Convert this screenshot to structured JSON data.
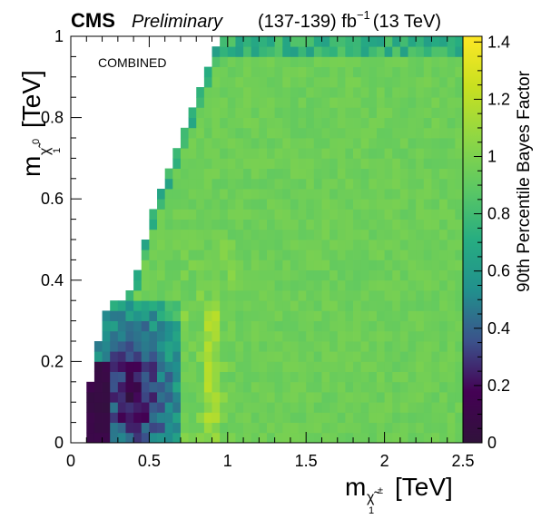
{
  "header": {
    "experiment": "CMS",
    "status": "Preliminary",
    "luminosity": "(137-139) fb",
    "lumi_exponent": "−1",
    "energy": "(13 TeV)"
  },
  "annotation": "COMBINED",
  "chart_data": {
    "type": "heatmap",
    "xlabel": {
      "main": "m",
      "sub": "χ̃",
      "sub_sup": "±",
      "sub_sub": "1",
      "unit": "[TeV]"
    },
    "ylabel": {
      "main": "m",
      "sub": "χ̃",
      "sub_sup": "0",
      "sub_sub": "1",
      "unit": "[TeV]"
    },
    "zlabel": "90th Percentile Bayes Factor",
    "xlim": [
      0,
      2.5
    ],
    "ylim": [
      0,
      1
    ],
    "zlim": [
      0,
      1.42
    ],
    "x_ticks": [
      "0",
      "0.5",
      "1",
      "1.5",
      "2",
      "2.5"
    ],
    "y_ticks": [
      "0",
      "0.2",
      "0.4",
      "0.6",
      "0.8",
      "1"
    ],
    "z_ticks": [
      "0",
      "0.2",
      "0.4",
      "0.6",
      "0.8",
      "1",
      "1.2",
      "1.4"
    ],
    "colormap": "viridis",
    "colormap_stops": [
      "#30123b",
      "#440154",
      "#3b528b",
      "#21908d",
      "#27ad81",
      "#5cc863",
      "#8fd744",
      "#c8e020",
      "#fde725"
    ],
    "background_value": 0.95,
    "x_bin_width": 0.05,
    "y_bin_width": 0.025,
    "region_boundary": {
      "description": "bins exist only where neutralino mass < chargino mass",
      "x": [
        0.1,
        0.2,
        0.4,
        0.5,
        0.55,
        0.6,
        0.65,
        0.7,
        0.75,
        0.8,
        0.85,
        0.9,
        0.95
      ],
      "y_max": [
        0.1,
        0.3,
        0.4,
        0.55,
        0.6,
        0.65,
        0.7,
        0.75,
        0.8,
        0.85,
        0.9,
        0.95,
        1.0
      ]
    },
    "features": [
      {
        "label": "low region",
        "x": [
          0.1,
          0.7
        ],
        "y": [
          0,
          0.35
        ],
        "value_range": [
          0,
          0.6
        ]
      },
      {
        "label": "edge band",
        "value_range": [
          0.6,
          0.85
        ]
      },
      {
        "label": "bulk",
        "value_range": [
          0.9,
          1.05
        ]
      },
      {
        "label": "bright streak near 0.9-0.95 TeV",
        "x": [
          0.85,
          0.95
        ],
        "y": [
          0,
          0.35
        ],
        "value_range": [
          1.0,
          1.2
        ]
      }
    ]
  }
}
